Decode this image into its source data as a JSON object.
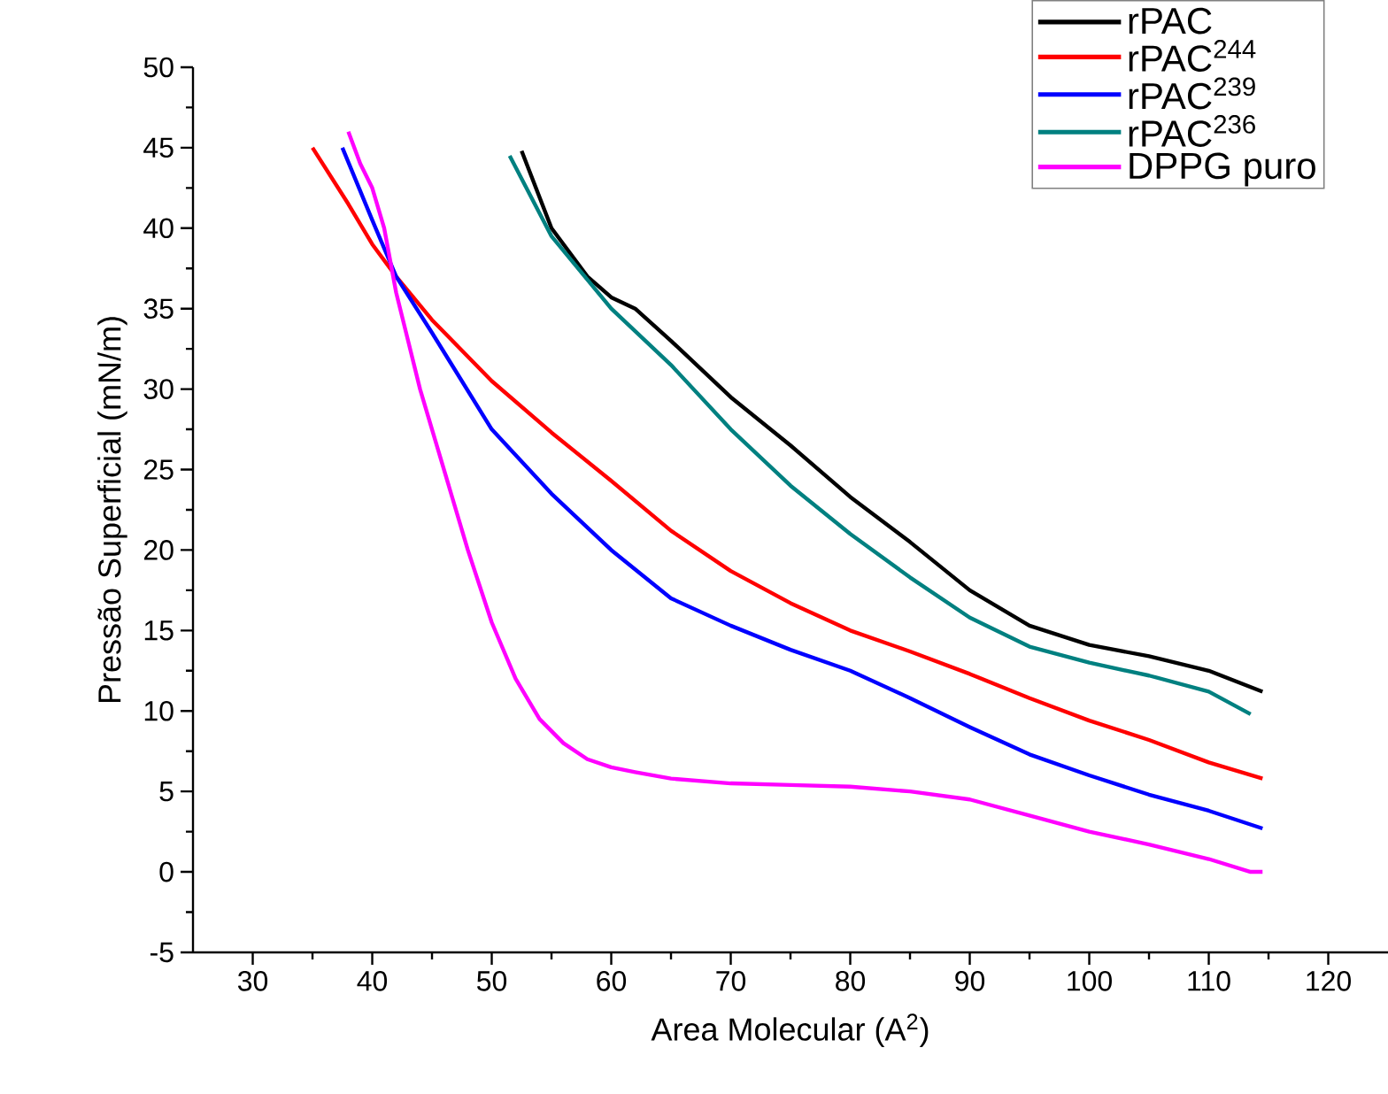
{
  "chart_data": {
    "type": "line",
    "xlabel": "Area Molecular (A$^{2}$)",
    "ylabel": "Pressão Superficial (mN/m)",
    "xlim": [
      25,
      125
    ],
    "ylim": [
      -5,
      50
    ],
    "xticks": [
      30,
      40,
      50,
      60,
      70,
      80,
      90,
      100,
      110,
      120
    ],
    "yticks": [
      -5,
      0,
      5,
      10,
      15,
      20,
      25,
      30,
      35,
      40,
      45,
      50
    ],
    "legend": "top right",
    "series": [
      {
        "name": "rPAC",
        "color": "#000000",
        "x": [
          52.5,
          55,
          58,
          60,
          62,
          65,
          70,
          75,
          80,
          85,
          90,
          95,
          100,
          105,
          110,
          114.5
        ],
        "values": [
          44.8,
          40,
          37,
          35.7,
          35,
          33,
          29.5,
          26.5,
          23.3,
          20.5,
          17.5,
          15.3,
          14.1,
          13.4,
          12.5,
          11.2
        ]
      },
      {
        "name": "rPAC$^{244}$",
        "color": "#ff0000",
        "x": [
          35,
          38,
          40,
          42,
          45,
          50,
          55,
          60,
          65,
          70,
          75,
          80,
          85,
          90,
          95,
          100,
          105,
          110,
          114.5
        ],
        "values": [
          45,
          41.5,
          39,
          37,
          34.3,
          30.5,
          27.3,
          24.3,
          21.2,
          18.7,
          16.7,
          15,
          13.7,
          12.3,
          10.8,
          9.4,
          8.2,
          6.8,
          5.8
        ]
      },
      {
        "name": "rPAC$^{239}$",
        "color": "#0000ff",
        "x": [
          37.5,
          40,
          42,
          45,
          50,
          55,
          60,
          65,
          70,
          75,
          80,
          85,
          90,
          95,
          100,
          105,
          110,
          114.5
        ],
        "values": [
          45,
          40.5,
          37,
          33.5,
          27.5,
          23.5,
          20,
          17,
          15.3,
          13.8,
          12.5,
          10.8,
          9,
          7.3,
          6,
          4.8,
          3.8,
          2.7
        ]
      },
      {
        "name": "rPAC$^{236}$",
        "color": "#008080",
        "x": [
          51.5,
          55,
          60,
          65,
          70,
          75,
          80,
          85,
          90,
          95,
          100,
          105,
          110,
          113.5
        ],
        "values": [
          44.5,
          39.5,
          35,
          31.5,
          27.5,
          24,
          21,
          18.3,
          15.8,
          14,
          13,
          12.2,
          11.2,
          9.8
        ]
      },
      {
        "name": "DPPG puro",
        "color": "#ff00ff",
        "x": [
          38,
          39,
          40,
          41,
          42,
          43,
          44,
          45,
          46,
          48,
          50,
          52,
          54,
          56,
          58,
          60,
          62,
          65,
          70,
          75,
          80,
          85,
          90,
          95,
          100,
          105,
          110,
          113.5,
          114.5
        ],
        "values": [
          46,
          44,
          42.5,
          40,
          36,
          33,
          30,
          27.5,
          25,
          20,
          15.5,
          12,
          9.5,
          8,
          7,
          6.5,
          6.2,
          5.8,
          5.5,
          5.4,
          5.3,
          5,
          4.5,
          3.5,
          2.5,
          1.7,
          0.8,
          0,
          0
        ]
      }
    ]
  }
}
